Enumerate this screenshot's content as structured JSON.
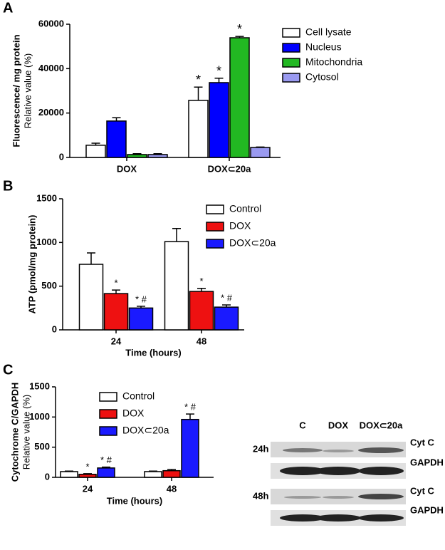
{
  "chart_data": [
    {
      "type": "bar",
      "panel": "A",
      "ylabel": "Fluorescence/ mg protein",
      "ylabel2": "Relative value (%)",
      "categories": [
        "DOX",
        "DOX⊂20a"
      ],
      "ylim": [
        0,
        60000
      ],
      "yticks": [
        0,
        20000,
        40000,
        60000
      ],
      "legend": "upper right",
      "series": [
        {
          "name": "Cell lysate",
          "color": "#ffffff",
          "values": [
            5500,
            25700
          ],
          "errors": [
            900,
            6000
          ],
          "annotations": [
            null,
            "*"
          ]
        },
        {
          "name": "Nucleus",
          "color": "#0000ff",
          "values": [
            16400,
            33700
          ],
          "errors": [
            1500,
            2000
          ],
          "annotations": [
            null,
            "*"
          ]
        },
        {
          "name": "Mitochondria",
          "color": "#22b822",
          "values": [
            1300,
            53900
          ],
          "errors": [
            400,
            600
          ],
          "annotations": [
            null,
            "*"
          ]
        },
        {
          "name": "Cytosol",
          "color": "#9a9af0",
          "values": [
            1300,
            4500
          ],
          "errors": [
            400,
            200
          ],
          "annotations": [
            null,
            null
          ]
        }
      ]
    },
    {
      "type": "bar",
      "panel": "B",
      "ylabel": "ATP (pmol/mg protein)",
      "xlabel": "Time (hours)",
      "categories": [
        "24",
        "48"
      ],
      "ylim": [
        0,
        1500
      ],
      "yticks": [
        0,
        500,
        1000,
        1500
      ],
      "legend": "upper right",
      "series": [
        {
          "name": "Control",
          "color": "#ffffff",
          "values": [
            750,
            1010
          ],
          "errors": [
            130,
            150
          ],
          "annotations": [
            null,
            null
          ]
        },
        {
          "name": "DOX",
          "color": "#ee1111",
          "values": [
            415,
            440
          ],
          "errors": [
            40,
            35
          ],
          "annotations": [
            "*",
            "*"
          ]
        },
        {
          "name": "DOX⊂20a",
          "color": "#1a1aff",
          "values": [
            250,
            260
          ],
          "errors": [
            20,
            25
          ],
          "annotations": [
            "* #",
            "* #"
          ]
        }
      ]
    },
    {
      "type": "bar",
      "panel": "C",
      "ylabel": "Cytochrome C/GAPDH",
      "ylabel2": "Relative value (%)",
      "xlabel": "Time (hours)",
      "categories": [
        "24",
        "48"
      ],
      "ylim": [
        0,
        1500
      ],
      "yticks": [
        0,
        500,
        1000,
        1500
      ],
      "legend": "upper left",
      "series": [
        {
          "name": "Control",
          "color": "#ffffff",
          "values": [
            95,
            95
          ],
          "errors": [
            8,
            8
          ],
          "annotations": [
            null,
            null
          ]
        },
        {
          "name": "DOX",
          "color": "#ee1111",
          "values": [
            50,
            110
          ],
          "errors": [
            10,
            20
          ],
          "annotations": [
            "*",
            null
          ]
        },
        {
          "name": "DOX⊂20a",
          "color": "#1a1aff",
          "values": [
            155,
            960
          ],
          "errors": [
            15,
            90
          ],
          "annotations": [
            "* #",
            "* #"
          ]
        }
      ]
    }
  ],
  "blot": {
    "columns": [
      "C",
      "DOX",
      "DOX⊂20a"
    ],
    "rows": [
      "24h",
      "48h"
    ],
    "bands": [
      "Cyt C",
      "GAPDH"
    ]
  }
}
